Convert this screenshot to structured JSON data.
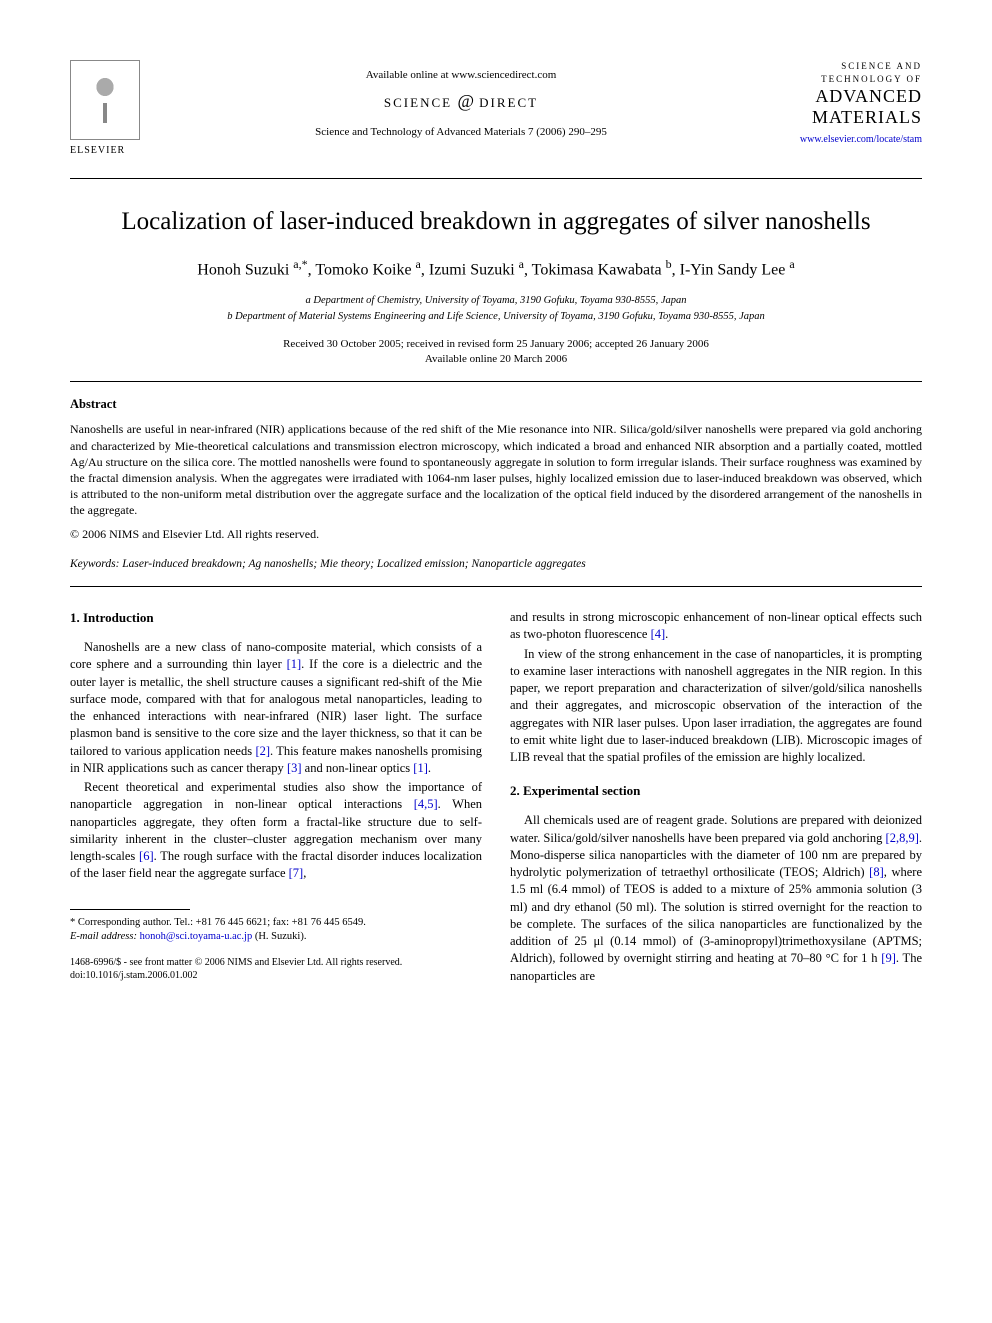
{
  "header": {
    "available_online": "Available online at www.sciencedirect.com",
    "sciencedirect_prefix": "SCIENCE",
    "sciencedirect_suffix": "DIRECT",
    "journal_ref": "Science and Technology of Advanced Materials 7 (2006) 290–295",
    "elsevier_name": "ELSEVIER",
    "journal_logo_top": "SCIENCE AND TECHNOLOGY OF",
    "journal_logo_main1": "ADVANCED",
    "journal_logo_main2": "MATERIALS",
    "journal_link": "www.elsevier.com/locate/stam"
  },
  "title": "Localization of laser-induced breakdown in aggregates of silver nanoshells",
  "authors_html": "Honoh Suzuki <sup>a,*</sup>, Tomoko Koike <sup>a</sup>, Izumi Suzuki <sup>a</sup>, Tokimasa Kawabata <sup>b</sup>, I-Yin Sandy Lee <sup>a</sup>",
  "affiliations": {
    "a": "a Department of Chemistry, University of Toyama, 3190 Gofuku, Toyama 930-8555, Japan",
    "b": "b Department of Material Systems Engineering and Life Science, University of Toyama, 3190 Gofuku, Toyama 930-8555, Japan"
  },
  "dates": {
    "received": "Received 30 October 2005; received in revised form 25 January 2006; accepted 26 January 2006",
    "online": "Available online 20 March 2006"
  },
  "abstract": {
    "heading": "Abstract",
    "text": "Nanoshells are useful in near-infrared (NIR) applications because of the red shift of the Mie resonance into NIR. Silica/gold/silver nanoshells were prepared via gold anchoring and characterized by Mie-theoretical calculations and transmission electron microscopy, which indicated a broad and enhanced NIR absorption and a partially coated, mottled Ag/Au structure on the silica core. The mottled nanoshells were found to spontaneously aggregate in solution to form irregular islands. Their surface roughness was examined by the fractal dimension analysis. When the aggregates were irradiated with 1064-nm laser pulses, highly localized emission due to laser-induced breakdown was observed, which is attributed to the non-uniform metal distribution over the aggregate surface and the localization of the optical field induced by the disordered arrangement of the nanoshells in the aggregate.",
    "copyright": "© 2006 NIMS and Elsevier Ltd. All rights reserved."
  },
  "keywords": {
    "label": "Keywords:",
    "text": " Laser-induced breakdown; Ag nanoshells; Mie theory; Localized emission; Nanoparticle aggregates"
  },
  "sections": {
    "intro_heading": "1. Introduction",
    "exp_heading": "2. Experimental section"
  },
  "body": {
    "p1a": "Nanoshells are a new class of nano-composite material, which consists of a core sphere and a surrounding thin layer ",
    "p1b": ". If the core is a dielectric and the outer layer is metallic, the shell structure causes a significant red-shift of the Mie surface mode, compared with that for analogous metal nanoparticles, leading to the enhanced interactions with near-infrared (NIR) laser light. The surface plasmon band is sensitive to the core size and the layer thickness, so that it can be tailored to various application needs ",
    "p1c": ". This feature makes nanoshells promising in NIR applications such as cancer therapy ",
    "p1d": " and non-linear optics ",
    "p1e": ".",
    "p2a": "Recent theoretical and experimental studies also show the importance of nanoparticle aggregation in non-linear optical interactions ",
    "p2b": ". When nanoparticles aggregate, they often form a fractal-like structure due to self-similarity inherent in the cluster–cluster aggregation mechanism over many length-scales ",
    "p2c": ". The rough surface with the fractal disorder induces localization of the laser field near the aggregate surface ",
    "p2d": ",",
    "p3a": "and results in strong microscopic enhancement of non-linear optical effects such as two-photon fluorescence ",
    "p3b": ".",
    "p4": "In view of the strong enhancement in the case of nanoparticles, it is prompting to examine laser interactions with nanoshell aggregates in the NIR region. In this paper, we report preparation and characterization of silver/gold/silica nanoshells and their aggregates, and microscopic observation of the interaction of the aggregates with NIR laser pulses. Upon laser irradiation, the aggregates are found to emit white light due to laser-induced breakdown (LIB). Microscopic images of LIB reveal that the spatial profiles of the emission are highly localized.",
    "p5a": "All chemicals used are of reagent grade. Solutions are prepared with deionized water. Silica/gold/silver nanoshells have been prepared via gold anchoring ",
    "p5b": ". Mono-disperse silica nanoparticles with the diameter of 100 nm are prepared by hydrolytic polymerization of tetraethyl orthosilicate (TEOS; Aldrich) ",
    "p5c": ", where 1.5 ml (6.4 mmol) of TEOS is added to a mixture of 25% ammonia solution (3 ml) and dry ethanol (50 ml). The solution is stirred overnight for the reaction to be complete. The surfaces of the silica nanoparticles are functionalized by the addition of 25 μl (0.14 mmol) of (3-aminopropyl)trimethoxysilane (APTMS; Aldrich), followed by overnight stirring and heating at 70–80 °C for 1 h ",
    "p5d": ". The nanoparticles are"
  },
  "cites": {
    "c1": "[1]",
    "c2": "[2]",
    "c3": "[3]",
    "c1b": "[1]",
    "c45": "[4,5]",
    "c6": "[6]",
    "c7": "[7]",
    "c4": "[4]",
    "c289": "[2,8,9]",
    "c8": "[8]",
    "c9": "[9]"
  },
  "footnote": {
    "corr": "* Corresponding author. Tel.: +81 76 445 6621; fax: +81 76 445 6549.",
    "email_label": "E-mail address:",
    "email": "honoh@sci.toyama-u.ac.jp",
    "email_suffix": " (H. Suzuki)."
  },
  "footer": {
    "line1": "1468-6996/$ - see front matter © 2006 NIMS and Elsevier Ltd. All rights reserved.",
    "line2": "doi:10.1016/j.stam.2006.01.002"
  },
  "colors": {
    "link": "#0000cc",
    "text": "#000000",
    "background": "#ffffff"
  },
  "typography": {
    "body_fontsize_pt": 9,
    "title_fontsize_pt": 18,
    "authors_fontsize_pt": 12,
    "font_family": "Times New Roman"
  }
}
